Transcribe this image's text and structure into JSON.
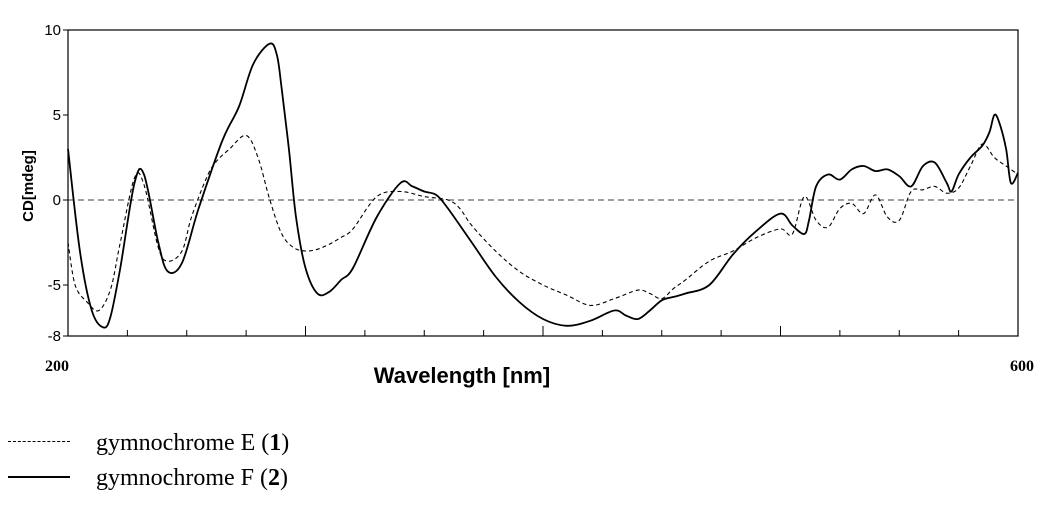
{
  "chart_data": {
    "type": "line",
    "xlabel": "Wavelength [nm]",
    "ylabel": "CD[mdeg]",
    "xlim": [
      200,
      600
    ],
    "ylim": [
      -8,
      10
    ],
    "x_tick_labels": [
      "200",
      "600"
    ],
    "y_ticks": [
      10,
      5,
      0,
      -5,
      -8
    ],
    "y_tick_labels": [
      "10",
      "5",
      "0",
      "-5",
      "-8"
    ],
    "zero_line": true,
    "grid": false,
    "legend_position": "bottom-left",
    "series": [
      {
        "name": "gymnochrome E (1)",
        "style": "dashed",
        "color": "#000000",
        "x": [
          200,
          203,
          208,
          213,
          218,
          222,
          228,
          232,
          238,
          242,
          248,
          252,
          258,
          262,
          268,
          275,
          280,
          285,
          290,
          295,
          300,
          305,
          310,
          315,
          320,
          330,
          340,
          350,
          360,
          365,
          370,
          380,
          390,
          400,
          410,
          420,
          430,
          440,
          445,
          450,
          455,
          460,
          470,
          480,
          490,
          500,
          505,
          510,
          515,
          520,
          525,
          530,
          535,
          540,
          545,
          550,
          555,
          560,
          565,
          570,
          575,
          580,
          585,
          590,
          595,
          600
        ],
        "y": [
          -2.5,
          -5.0,
          -6.0,
          -6.5,
          -5.2,
          -2.5,
          1.3,
          0.9,
          -2.8,
          -3.6,
          -3.0,
          -1.0,
          1.2,
          2.2,
          3.0,
          3.8,
          2.5,
          0.0,
          -2.0,
          -2.8,
          -3.0,
          -2.9,
          -2.6,
          -2.2,
          -1.7,
          0.2,
          0.5,
          0.2,
          0.0,
          -0.5,
          -1.5,
          -3.0,
          -4.2,
          -5.0,
          -5.6,
          -6.2,
          -5.8,
          -5.3,
          -5.5,
          -5.8,
          -5.2,
          -4.7,
          -3.6,
          -3.0,
          -2.2,
          -1.7,
          -2.0,
          0.2,
          -1.2,
          -1.6,
          -0.5,
          -0.2,
          -0.8,
          0.3,
          -1.0,
          -1.2,
          0.5,
          0.6,
          0.8,
          0.4,
          0.7,
          2.0,
          3.3,
          2.5,
          2.0,
          1.5
        ]
      },
      {
        "name": "gymnochrome F (2)",
        "style": "solid",
        "color": "#000000",
        "x": [
          200,
          205,
          210,
          215,
          218,
          222,
          228,
          232,
          238,
          242,
          248,
          255,
          265,
          272,
          278,
          285,
          288,
          290,
          293,
          296,
          300,
          305,
          310,
          315,
          320,
          330,
          340,
          345,
          350,
          355,
          360,
          370,
          380,
          390,
          400,
          410,
          420,
          430,
          435,
          440,
          445,
          450,
          455,
          460,
          470,
          480,
          490,
          500,
          505,
          510,
          512,
          515,
          520,
          525,
          530,
          535,
          540,
          545,
          550,
          555,
          560,
          565,
          570,
          572,
          575,
          580,
          585,
          588,
          590,
          592,
          595,
          597,
          600
        ],
        "y": [
          3.0,
          -3.0,
          -6.5,
          -7.5,
          -6.8,
          -4.0,
          1.0,
          1.5,
          -2.5,
          -4.2,
          -3.7,
          -0.5,
          3.5,
          5.5,
          8.0,
          9.2,
          8.5,
          6.5,
          3.0,
          -1.0,
          -4.0,
          -5.5,
          -5.4,
          -4.7,
          -4.0,
          -1.0,
          1.0,
          0.8,
          0.5,
          0.3,
          -0.5,
          -2.5,
          -4.5,
          -6.0,
          -7.0,
          -7.4,
          -7.1,
          -6.5,
          -6.8,
          -7.0,
          -6.5,
          -5.9,
          -5.7,
          -5.5,
          -5.0,
          -3.2,
          -1.8,
          -0.8,
          -1.5,
          -2.0,
          -1.2,
          0.8,
          1.5,
          1.2,
          1.8,
          2.0,
          1.7,
          1.8,
          1.4,
          0.8,
          2.0,
          2.2,
          1.0,
          0.5,
          1.5,
          2.5,
          3.2,
          4.0,
          5.0,
          4.6,
          3.0,
          1.0,
          1.6
        ]
      }
    ]
  },
  "legend": {
    "items": [
      {
        "label": "gymnochrome E (",
        "bold": "1",
        "end": ")"
      },
      {
        "label": "gymnochrome F (",
        "bold": "2",
        "end": ")"
      }
    ]
  }
}
